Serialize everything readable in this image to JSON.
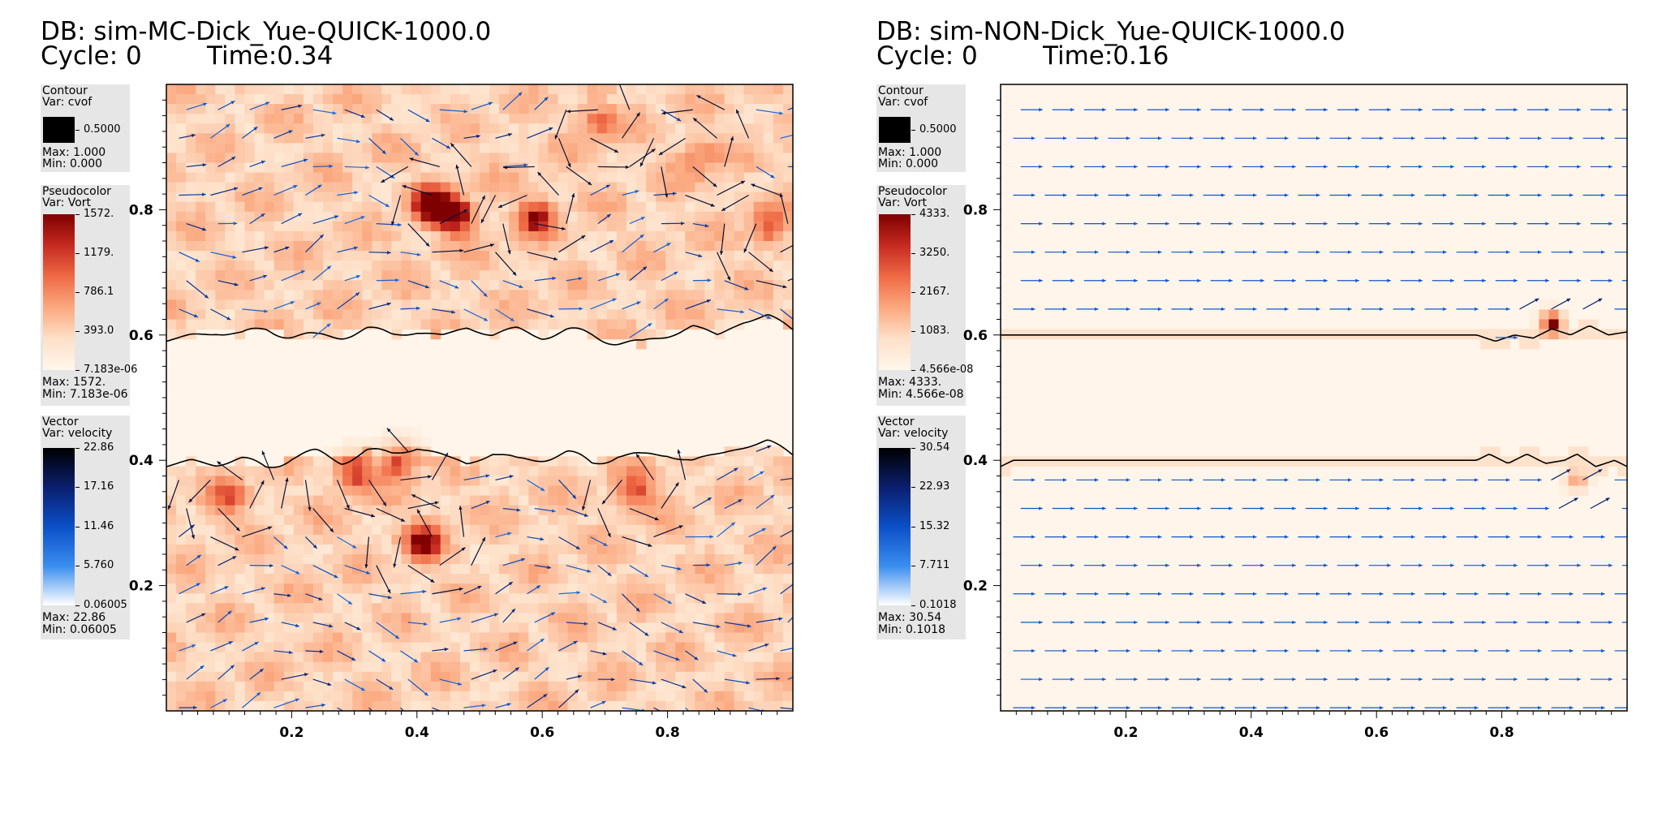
{
  "panels": [
    {
      "db": "DB: sim-MC-Dick_Yue-QUICK-1000.0",
      "cycle": "Cycle: 0",
      "time": "Time:0.34",
      "contour_legend": {
        "title": "Contour",
        "var": "Var: cvof",
        "level": "0.5000",
        "max": "Max:  1.000",
        "min": "Min:  0.000"
      },
      "pseudo_legend": {
        "title": "Pseudocolor",
        "var": "Var: Vort",
        "ticks": [
          "1572.",
          "1179.",
          "786.1",
          "393.0",
          "7.183e-06"
        ],
        "max": "Max:  1572.",
        "min": "Min:  7.183e-06"
      },
      "vector_legend": {
        "title": "Vector",
        "var": "Var: velocity",
        "ticks": [
          "22.86",
          "17.16",
          "11.46",
          "5.760",
          "0.06005"
        ],
        "max": "Max:  22.86",
        "min": "Min:  0.06005"
      }
    },
    {
      "db": "DB: sim-NON-Dick_Yue-QUICK-1000.0",
      "cycle": "Cycle: 0",
      "time": "Time:0.16",
      "contour_legend": {
        "title": "Contour",
        "var": "Var: cvof",
        "level": "0.5000",
        "max": "Max:  1.000",
        "min": "Min:  0.000"
      },
      "pseudo_legend": {
        "title": "Pseudocolor",
        "var": "Var: Vort",
        "ticks": [
          "4333.",
          "3250.",
          "2167.",
          "1083.",
          "4.566e-08"
        ],
        "max": "Max:  4333.",
        "min": "Min:  4.566e-08"
      },
      "vector_legend": {
        "title": "Vector",
        "var": "Var: velocity",
        "ticks": [
          "30.54",
          "22.93",
          "15.32",
          "7.711",
          "0.1018"
        ],
        "max": "Max:  30.54",
        "min": "Min:  0.1018"
      }
    }
  ],
  "chart_data": [
    {
      "type": "heatmap",
      "title": "DB: sim-MC-Dick_Yue-QUICK-1000.0",
      "xlim": [
        0,
        1
      ],
      "ylim": [
        0,
        1
      ],
      "x_ticks": [
        "0.2",
        "0.4",
        "0.6",
        "0.8"
      ],
      "y_ticks": [
        "0.2",
        "0.4",
        "0.6",
        "0.8"
      ],
      "interface_upper": [
        [
          0.0,
          0.59
        ],
        [
          0.04,
          0.6
        ],
        [
          0.08,
          0.605
        ],
        [
          0.12,
          0.6
        ],
        [
          0.16,
          0.61
        ],
        [
          0.2,
          0.6
        ],
        [
          0.24,
          0.595
        ],
        [
          0.28,
          0.6
        ],
        [
          0.32,
          0.61
        ],
        [
          0.36,
          0.6
        ],
        [
          0.4,
          0.605
        ],
        [
          0.44,
          0.6
        ],
        [
          0.48,
          0.612
        ],
        [
          0.52,
          0.6
        ],
        [
          0.56,
          0.608
        ],
        [
          0.6,
          0.6
        ],
        [
          0.64,
          0.605
        ],
        [
          0.68,
          0.6
        ],
        [
          0.72,
          0.59
        ],
        [
          0.76,
          0.585
        ],
        [
          0.8,
          0.6
        ],
        [
          0.84,
          0.615
        ],
        [
          0.88,
          0.6
        ],
        [
          0.92,
          0.62
        ],
        [
          0.96,
          0.63
        ],
        [
          1.0,
          0.61
        ]
      ],
      "interface_lower": [
        [
          0.0,
          0.39
        ],
        [
          0.04,
          0.4
        ],
        [
          0.08,
          0.395
        ],
        [
          0.12,
          0.4
        ],
        [
          0.16,
          0.39
        ],
        [
          0.2,
          0.405
        ],
        [
          0.24,
          0.41
        ],
        [
          0.28,
          0.4
        ],
        [
          0.32,
          0.415
        ],
        [
          0.36,
          0.41
        ],
        [
          0.4,
          0.42
        ],
        [
          0.44,
          0.41
        ],
        [
          0.48,
          0.395
        ],
        [
          0.52,
          0.41
        ],
        [
          0.56,
          0.4
        ],
        [
          0.6,
          0.405
        ],
        [
          0.64,
          0.41
        ],
        [
          0.68,
          0.395
        ],
        [
          0.72,
          0.41
        ],
        [
          0.76,
          0.405
        ],
        [
          0.8,
          0.41
        ],
        [
          0.84,
          0.4
        ],
        [
          0.88,
          0.41
        ],
        [
          0.92,
          0.42
        ],
        [
          0.96,
          0.43
        ],
        [
          1.0,
          0.41
        ]
      ],
      "vortices": [
        {
          "x": 0.46,
          "y": 0.79,
          "strength": 1.0
        },
        {
          "x": 0.42,
          "y": 0.81,
          "strength": 0.9
        },
        {
          "x": 0.41,
          "y": 0.27,
          "strength": 0.8
        },
        {
          "x": 0.59,
          "y": 0.79,
          "strength": 0.7
        },
        {
          "x": 0.75,
          "y": 0.35,
          "strength": 0.6
        },
        {
          "x": 0.1,
          "y": 0.34,
          "strength": 0.5
        },
        {
          "x": 0.3,
          "y": 0.38,
          "strength": 0.7
        },
        {
          "x": 0.37,
          "y": 0.4,
          "strength": 0.6
        },
        {
          "x": 0.96,
          "y": 0.77,
          "strength": 0.5
        },
        {
          "x": 0.69,
          "y": 0.94,
          "strength": 0.5
        },
        {
          "x": 0.85,
          "y": 0.88,
          "strength": 0.4
        }
      ],
      "vector_max": 22.86
    },
    {
      "type": "heatmap",
      "title": "DB: sim-NON-Dick_Yue-QUICK-1000.0",
      "xlim": [
        0,
        1
      ],
      "ylim": [
        0,
        1
      ],
      "x_ticks": [
        "0.2",
        "0.4",
        "0.6",
        "0.8"
      ],
      "y_ticks": [
        "0.2",
        "0.4",
        "0.6",
        "0.8"
      ],
      "interface_upper": [
        [
          0.0,
          0.6
        ],
        [
          0.1,
          0.6
        ],
        [
          0.2,
          0.6
        ],
        [
          0.3,
          0.6
        ],
        [
          0.4,
          0.6
        ],
        [
          0.5,
          0.6
        ],
        [
          0.6,
          0.6
        ],
        [
          0.7,
          0.6
        ],
        [
          0.76,
          0.6
        ],
        [
          0.79,
          0.59
        ],
        [
          0.82,
          0.6
        ],
        [
          0.85,
          0.595
        ],
        [
          0.88,
          0.61
        ],
        [
          0.91,
          0.6
        ],
        [
          0.94,
          0.615
        ],
        [
          0.97,
          0.6
        ],
        [
          1.0,
          0.605
        ]
      ],
      "interface_lower": [
        [
          0.0,
          0.39
        ],
        [
          0.02,
          0.4
        ],
        [
          0.1,
          0.4
        ],
        [
          0.2,
          0.4
        ],
        [
          0.3,
          0.4
        ],
        [
          0.4,
          0.4
        ],
        [
          0.5,
          0.4
        ],
        [
          0.6,
          0.4
        ],
        [
          0.7,
          0.4
        ],
        [
          0.76,
          0.4
        ],
        [
          0.78,
          0.41
        ],
        [
          0.81,
          0.395
        ],
        [
          0.84,
          0.41
        ],
        [
          0.87,
          0.395
        ],
        [
          0.9,
          0.4
        ],
        [
          0.92,
          0.41
        ],
        [
          0.95,
          0.39
        ],
        [
          0.98,
          0.4
        ],
        [
          1.0,
          0.39
        ]
      ],
      "vortices": [
        {
          "x": 0.88,
          "y": 0.62,
          "strength": 1.0
        },
        {
          "x": 0.92,
          "y": 0.37,
          "strength": 0.5
        }
      ],
      "vector_max": 30.54
    }
  ]
}
